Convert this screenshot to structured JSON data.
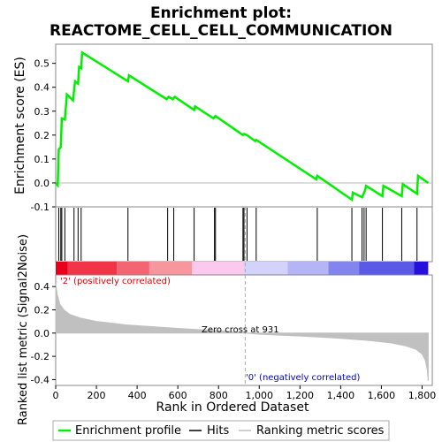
{
  "chart_data": {
    "type": "line",
    "title": "Enrichment plot:",
    "subtitle": "REACTOME_CELL_CELL_COMMUNICATION",
    "es_ylabel": "Enrichment score (ES)",
    "metric_ylabel": "Ranked list metric (Signal2Noise)",
    "xlabel": "Rank in Ordered Dataset",
    "xlim": [
      0,
      1850
    ],
    "es_ylim": [
      -0.1,
      0.58
    ],
    "metric_ylim": [
      -0.45,
      0.5
    ],
    "x_ticks": [
      0,
      200,
      400,
      600,
      800,
      1000,
      1200,
      1400,
      1600,
      1800
    ],
    "x_tick_labels": [
      "0",
      "200",
      "400",
      "600",
      "800",
      "1,000",
      "1,200",
      "1,400",
      "1,600",
      "1,800"
    ],
    "es_ticks": [
      -0.1,
      0.0,
      0.1,
      0.2,
      0.3,
      0.4,
      0.5
    ],
    "es_tick_labels": [
      "-0.1",
      "0.0",
      "0.1",
      "0.2",
      "0.3",
      "0.4",
      "0.5"
    ],
    "metric_ticks": [
      -0.4,
      -0.2,
      0.0,
      0.2,
      0.4
    ],
    "metric_tick_labels": [
      "-0.4",
      "-0.2",
      "0.0",
      "0.2",
      "0.4"
    ],
    "enrichment_profile": {
      "x": [
        0,
        10,
        15,
        25,
        30,
        45,
        55,
        85,
        95,
        110,
        115,
        125,
        130,
        355,
        360,
        545,
        555,
        575,
        585,
        680,
        685,
        775,
        785,
        920,
        925,
        940,
        980,
        985,
        1280,
        1285,
        1455,
        1460,
        1505,
        1510,
        1520,
        1525,
        1605,
        1610,
        1700,
        1705,
        1775,
        1780,
        1830
      ],
      "y": [
        0.0,
        -0.01,
        0.14,
        0.15,
        0.27,
        0.265,
        0.37,
        0.345,
        0.425,
        0.415,
        0.485,
        0.48,
        0.545,
        0.425,
        0.45,
        0.35,
        0.36,
        0.35,
        0.36,
        0.305,
        0.32,
        0.27,
        0.28,
        0.2,
        0.205,
        0.2,
        0.175,
        0.18,
        0.015,
        0.03,
        -0.07,
        -0.04,
        -0.06,
        -0.05,
        -0.03,
        -0.012,
        -0.055,
        -0.012,
        -0.055,
        -0.005,
        -0.045,
        0.03,
        0.0
      ]
    },
    "hits": [
      15,
      25,
      30,
      45,
      90,
      110,
      125,
      355,
      550,
      580,
      680,
      780,
      785,
      920,
      925,
      940,
      985,
      1285,
      1455,
      1505,
      1515,
      1525,
      1605,
      1700,
      1775
    ],
    "metric_curve": {
      "x": [
        0,
        8,
        20,
        40,
        70,
        120,
        200,
        350,
        600,
        850,
        931,
        1000,
        1200,
        1400,
        1550,
        1650,
        1720,
        1770,
        1800,
        1815,
        1825,
        1830
      ],
      "y": [
        0.42,
        0.33,
        0.25,
        0.2,
        0.16,
        0.13,
        0.1,
        0.07,
        0.04,
        0.015,
        0.0,
        -0.01,
        -0.025,
        -0.045,
        -0.065,
        -0.085,
        -0.11,
        -0.14,
        -0.18,
        -0.23,
        -0.31,
        -0.41
      ]
    },
    "zero_cross_rank": 931,
    "zero_cross_label": "Zero cross at 931",
    "pos_label": "'2' (positively correlated)",
    "neg_label": "'0' (negatively correlated)",
    "heat_bar": [
      {
        "from": 0,
        "to": 60,
        "color": "#e8001a"
      },
      {
        "from": 60,
        "to": 300,
        "color": "#ef3547"
      },
      {
        "from": 300,
        "to": 460,
        "color": "#f36571"
      },
      {
        "from": 460,
        "to": 670,
        "color": "#f7969c"
      },
      {
        "from": 670,
        "to": 925,
        "color": "#fbc8ee"
      },
      {
        "from": 925,
        "to": 1140,
        "color": "#d2d2fb"
      },
      {
        "from": 1140,
        "to": 1340,
        "color": "#b4b4f6"
      },
      {
        "from": 1340,
        "to": 1490,
        "color": "#8484ef"
      },
      {
        "from": 1490,
        "to": 1760,
        "color": "#5a5ae6"
      },
      {
        "from": 1760,
        "to": 1830,
        "color": "#2410d8"
      }
    ],
    "colors": {
      "profile": "#00ee00",
      "hits": "#000000",
      "metric": "#c0c0c0",
      "pos_text": "#dd0000",
      "neg_text": "#0000cc"
    },
    "legend": {
      "profile": "Enrichment profile",
      "hits": "Hits",
      "metric": "Ranking metric scores"
    },
    "legend_position": "bottom"
  }
}
